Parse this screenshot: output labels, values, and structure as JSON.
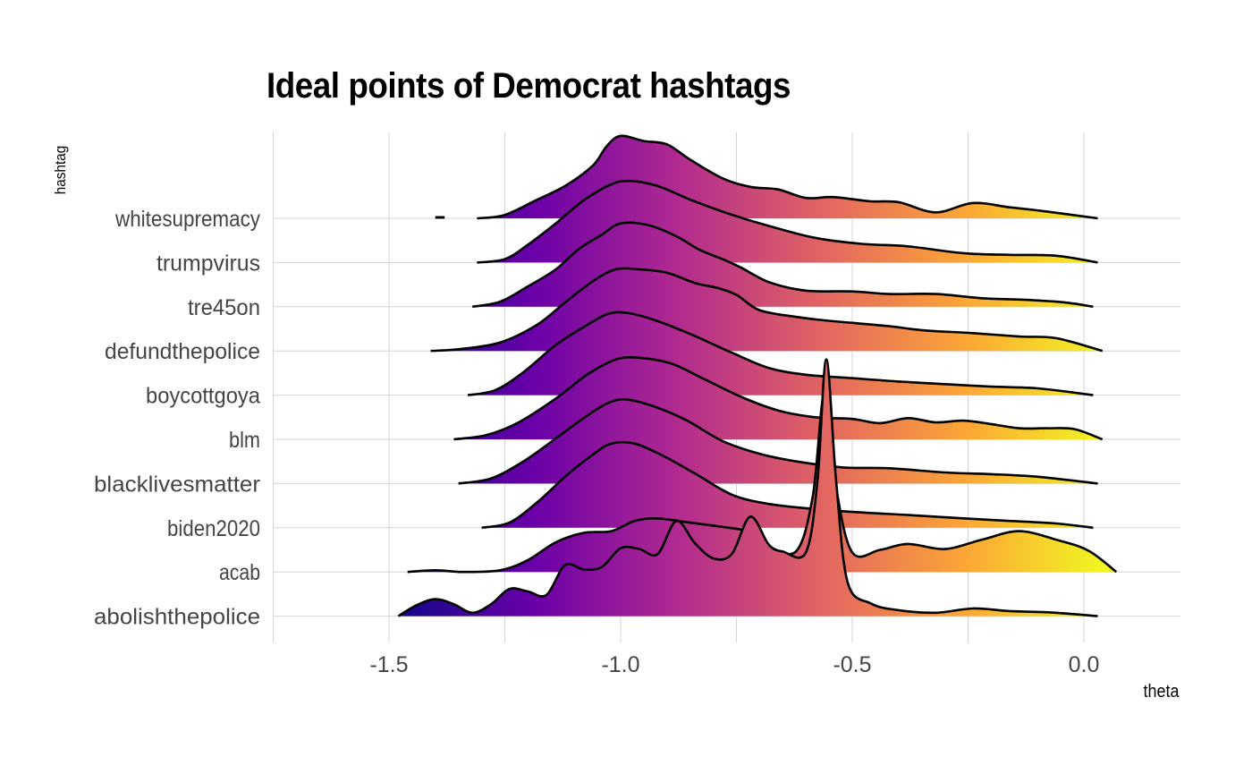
{
  "chart_data": {
    "type": "area",
    "subtype": "ridgeline",
    "title": "Ideal points of Democrat hashtags",
    "xlabel": "theta",
    "ylabel": "hashtag",
    "xlim": [
      -1.75,
      0.21
    ],
    "x_ticks": [
      -1.5,
      -1.0,
      -0.5,
      0.0
    ],
    "x_tick_labels": [
      "-1.5",
      "-1.0",
      "-0.5",
      "0.0"
    ],
    "grid": true,
    "fill_gradient": [
      "#0d0887",
      "#6a00a8",
      "#b12a90",
      "#e16462",
      "#fca636",
      "#f0f921"
    ],
    "categories": [
      "whitesupremacy",
      "trumpvirus",
      "tre45on",
      "defundthepolice",
      "boycottgoya",
      "blm",
      "blacklivesmatter",
      "biden2020",
      "acab",
      "abolishthepolice"
    ],
    "series": [
      {
        "name": "whitesupremacy",
        "points": [
          [
            -1.31,
            0.0
          ],
          [
            -1.25,
            0.04
          ],
          [
            -1.18,
            0.22
          ],
          [
            -1.12,
            0.38
          ],
          [
            -1.06,
            0.62
          ],
          [
            -1.03,
            0.85
          ],
          [
            -1.0,
            0.97
          ],
          [
            -0.95,
            0.91
          ],
          [
            -0.9,
            0.87
          ],
          [
            -0.85,
            0.69
          ],
          [
            -0.78,
            0.47
          ],
          [
            -0.72,
            0.37
          ],
          [
            -0.66,
            0.34
          ],
          [
            -0.6,
            0.24
          ],
          [
            -0.54,
            0.25
          ],
          [
            -0.46,
            0.2
          ],
          [
            -0.4,
            0.19
          ],
          [
            -0.32,
            0.07
          ],
          [
            -0.24,
            0.18
          ],
          [
            -0.16,
            0.13
          ],
          [
            -0.08,
            0.08
          ],
          [
            0.03,
            0.0
          ]
        ],
        "extra": [
          [
            -1.4,
            0.0
          ],
          [
            -1.38,
            0.0
          ]
        ]
      },
      {
        "name": "trumpvirus",
        "points": [
          [
            -1.31,
            0.0
          ],
          [
            -1.25,
            0.04
          ],
          [
            -1.2,
            0.21
          ],
          [
            -1.14,
            0.46
          ],
          [
            -1.08,
            0.73
          ],
          [
            -1.02,
            0.92
          ],
          [
            -0.98,
            0.96
          ],
          [
            -0.92,
            0.9
          ],
          [
            -0.85,
            0.74
          ],
          [
            -0.77,
            0.58
          ],
          [
            -0.68,
            0.43
          ],
          [
            -0.58,
            0.29
          ],
          [
            -0.48,
            0.22
          ],
          [
            -0.38,
            0.19
          ],
          [
            -0.26,
            0.11
          ],
          [
            -0.16,
            0.09
          ],
          [
            -0.06,
            0.08
          ],
          [
            0.03,
            0.0
          ]
        ]
      },
      {
        "name": "tre45on",
        "points": [
          [
            -1.32,
            0.0
          ],
          [
            -1.26,
            0.06
          ],
          [
            -1.2,
            0.24
          ],
          [
            -1.14,
            0.44
          ],
          [
            -1.09,
            0.68
          ],
          [
            -1.04,
            0.85
          ],
          [
            -1.0,
            0.98
          ],
          [
            -0.94,
            0.96
          ],
          [
            -0.88,
            0.83
          ],
          [
            -0.83,
            0.67
          ],
          [
            -0.78,
            0.56
          ],
          [
            -0.74,
            0.46
          ],
          [
            -0.68,
            0.29
          ],
          [
            -0.6,
            0.19
          ],
          [
            -0.5,
            0.18
          ],
          [
            -0.42,
            0.15
          ],
          [
            -0.32,
            0.15
          ],
          [
            -0.22,
            0.1
          ],
          [
            -0.12,
            0.08
          ],
          [
            -0.04,
            0.05
          ],
          [
            0.02,
            0.0
          ]
        ]
      },
      {
        "name": "defundthepolice",
        "points": [
          [
            -1.41,
            0.0
          ],
          [
            -1.35,
            0.02
          ],
          [
            -1.26,
            0.1
          ],
          [
            -1.18,
            0.31
          ],
          [
            -1.12,
            0.57
          ],
          [
            -1.06,
            0.82
          ],
          [
            -1.01,
            0.96
          ],
          [
            -0.96,
            0.96
          ],
          [
            -0.9,
            0.92
          ],
          [
            -0.84,
            0.8
          ],
          [
            -0.79,
            0.74
          ],
          [
            -0.75,
            0.66
          ],
          [
            -0.7,
            0.48
          ],
          [
            -0.62,
            0.4
          ],
          [
            -0.56,
            0.36
          ],
          [
            -0.5,
            0.33
          ],
          [
            -0.42,
            0.29
          ],
          [
            -0.34,
            0.24
          ],
          [
            -0.24,
            0.21
          ],
          [
            -0.14,
            0.17
          ],
          [
            -0.06,
            0.15
          ],
          [
            0.04,
            0.0
          ]
        ]
      },
      {
        "name": "boycottgoya",
        "points": [
          [
            -1.33,
            0.0
          ],
          [
            -1.27,
            0.06
          ],
          [
            -1.21,
            0.27
          ],
          [
            -1.14,
            0.59
          ],
          [
            -1.08,
            0.8
          ],
          [
            -1.03,
            0.95
          ],
          [
            -0.99,
            0.97
          ],
          [
            -0.93,
            0.89
          ],
          [
            -0.85,
            0.72
          ],
          [
            -0.76,
            0.5
          ],
          [
            -0.68,
            0.32
          ],
          [
            -0.6,
            0.24
          ],
          [
            -0.5,
            0.2
          ],
          [
            -0.4,
            0.16
          ],
          [
            -0.3,
            0.13
          ],
          [
            -0.2,
            0.1
          ],
          [
            -0.1,
            0.08
          ],
          [
            0.02,
            0.0
          ]
        ]
      },
      {
        "name": "blm",
        "points": [
          [
            -1.36,
            0.0
          ],
          [
            -1.29,
            0.05
          ],
          [
            -1.22,
            0.2
          ],
          [
            -1.14,
            0.48
          ],
          [
            -1.07,
            0.77
          ],
          [
            -1.01,
            0.94
          ],
          [
            -0.96,
            0.96
          ],
          [
            -0.89,
            0.89
          ],
          [
            -0.82,
            0.71
          ],
          [
            -0.74,
            0.5
          ],
          [
            -0.66,
            0.34
          ],
          [
            -0.58,
            0.26
          ],
          [
            -0.5,
            0.24
          ],
          [
            -0.44,
            0.19
          ],
          [
            -0.38,
            0.25
          ],
          [
            -0.32,
            0.2
          ],
          [
            -0.26,
            0.22
          ],
          [
            -0.2,
            0.18
          ],
          [
            -0.14,
            0.13
          ],
          [
            -0.08,
            0.13
          ],
          [
            -0.02,
            0.12
          ],
          [
            0.04,
            0.0
          ]
        ]
      },
      {
        "name": "blacklivesmatter",
        "points": [
          [
            -1.35,
            0.0
          ],
          [
            -1.28,
            0.06
          ],
          [
            -1.21,
            0.26
          ],
          [
            -1.14,
            0.53
          ],
          [
            -1.08,
            0.77
          ],
          [
            -1.03,
            0.94
          ],
          [
            -0.99,
            0.99
          ],
          [
            -0.93,
            0.91
          ],
          [
            -0.86,
            0.75
          ],
          [
            -0.78,
            0.5
          ],
          [
            -0.7,
            0.35
          ],
          [
            -0.62,
            0.26
          ],
          [
            -0.52,
            0.19
          ],
          [
            -0.42,
            0.18
          ],
          [
            -0.3,
            0.13
          ],
          [
            -0.2,
            0.11
          ],
          [
            -0.1,
            0.08
          ],
          [
            0.03,
            0.0
          ]
        ]
      },
      {
        "name": "biden2020",
        "points": [
          [
            -1.3,
            0.0
          ],
          [
            -1.24,
            0.06
          ],
          [
            -1.18,
            0.3
          ],
          [
            -1.12,
            0.6
          ],
          [
            -1.06,
            0.86
          ],
          [
            -1.02,
            0.99
          ],
          [
            -0.97,
            0.99
          ],
          [
            -0.91,
            0.85
          ],
          [
            -0.84,
            0.64
          ],
          [
            -0.76,
            0.39
          ],
          [
            -0.68,
            0.28
          ],
          [
            -0.58,
            0.22
          ],
          [
            -0.48,
            0.18
          ],
          [
            -0.38,
            0.15
          ],
          [
            -0.26,
            0.11
          ],
          [
            -0.16,
            0.08
          ],
          [
            -0.06,
            0.05
          ],
          [
            0.02,
            0.0
          ]
        ]
      },
      {
        "name": "acab",
        "points": [
          [
            -1.46,
            0.0
          ],
          [
            -1.4,
            0.02
          ],
          [
            -1.34,
            0.0
          ],
          [
            -1.26,
            0.02
          ],
          [
            -1.2,
            0.14
          ],
          [
            -1.14,
            0.35
          ],
          [
            -1.08,
            0.46
          ],
          [
            -1.02,
            0.48
          ],
          [
            -0.97,
            0.6
          ],
          [
            -0.92,
            0.63
          ],
          [
            -0.85,
            0.58
          ],
          [
            -0.78,
            0.53
          ],
          [
            -0.72,
            0.47
          ],
          [
            -0.68,
            0.3
          ],
          [
            -0.62,
            0.25
          ],
          [
            -0.585,
            0.9
          ],
          [
            -0.56,
            2.1
          ],
          [
            -0.535,
            1.0
          ],
          [
            -0.5,
            0.23
          ],
          [
            -0.44,
            0.26
          ],
          [
            -0.38,
            0.33
          ],
          [
            -0.3,
            0.27
          ],
          [
            -0.22,
            0.38
          ],
          [
            -0.14,
            0.48
          ],
          [
            -0.06,
            0.38
          ],
          [
            0.01,
            0.25
          ],
          [
            0.07,
            0.0
          ]
        ]
      },
      {
        "name": "abolishthepolice",
        "points": [
          [
            -1.48,
            0.0
          ],
          [
            -1.44,
            0.13
          ],
          [
            -1.4,
            0.2
          ],
          [
            -1.36,
            0.14
          ],
          [
            -1.32,
            0.04
          ],
          [
            -1.28,
            0.14
          ],
          [
            -1.24,
            0.32
          ],
          [
            -1.2,
            0.29
          ],
          [
            -1.16,
            0.25
          ],
          [
            -1.12,
            0.6
          ],
          [
            -1.08,
            0.55
          ],
          [
            -1.04,
            0.58
          ],
          [
            -1.0,
            0.8
          ],
          [
            -0.96,
            0.79
          ],
          [
            -0.92,
            0.73
          ],
          [
            -0.88,
            1.12
          ],
          [
            -0.84,
            0.86
          ],
          [
            -0.8,
            0.68
          ],
          [
            -0.76,
            0.73
          ],
          [
            -0.72,
            1.17
          ],
          [
            -0.68,
            0.84
          ],
          [
            -0.65,
            0.76
          ],
          [
            -0.6,
            0.75
          ],
          [
            -0.575,
            1.6
          ],
          [
            -0.556,
            3.02
          ],
          [
            -0.535,
            1.6
          ],
          [
            -0.51,
            0.4
          ],
          [
            -0.46,
            0.15
          ],
          [
            -0.4,
            0.07
          ],
          [
            -0.32,
            0.04
          ],
          [
            -0.24,
            0.09
          ],
          [
            -0.16,
            0.06
          ],
          [
            -0.06,
            0.04
          ],
          [
            0.03,
            0.0
          ]
        ]
      }
    ]
  }
}
